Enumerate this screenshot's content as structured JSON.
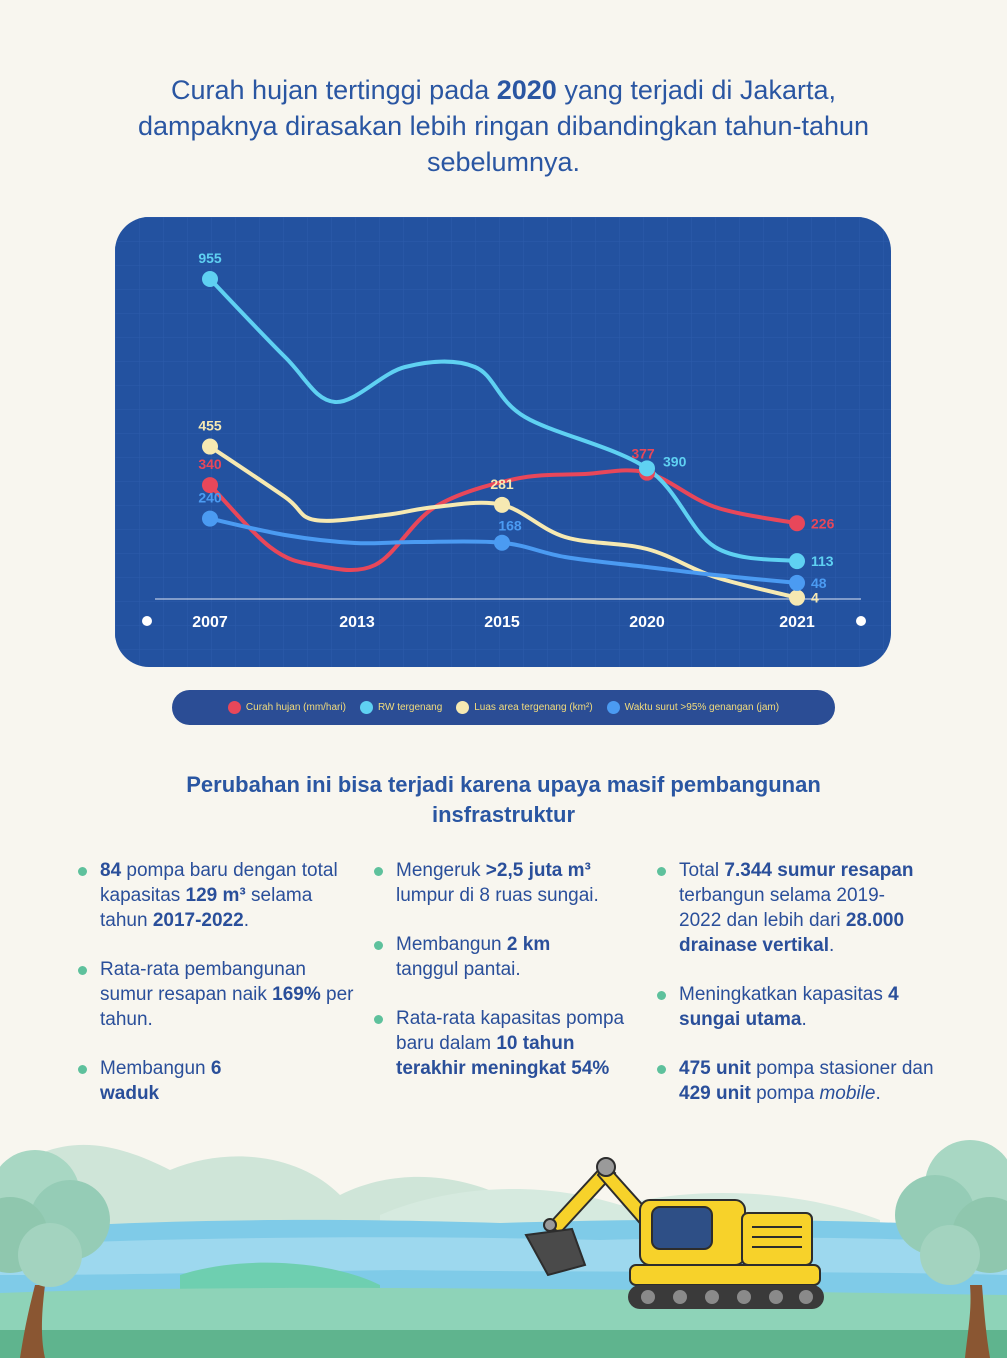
{
  "title": {
    "part1": "Curah hujan tertinggi pada ",
    "year": "2020",
    "part2": " yang terjadi di Jakarta, dampaknya dirasakan lebih ringan dibandingkan tahun-tahun sebelumnya."
  },
  "chart_data": {
    "type": "line",
    "categories": [
      "2007",
      "2013",
      "2015",
      "2020",
      "2021"
    ],
    "series": [
      {
        "name": "Curah hujan (mm/hari)",
        "color": "#e8475a",
        "values": [
          340,
          null,
          null,
          377,
          226
        ],
        "labels": [
          "340",
          "",
          "",
          "377",
          "226"
        ]
      },
      {
        "name": "RW tergenang",
        "color": "#5fd1f2",
        "values": [
          955,
          null,
          null,
          390,
          113
        ],
        "labels": [
          "955",
          "",
          "",
          "390",
          "113"
        ]
      },
      {
        "name": "Luas area tergenang (km²)",
        "color": "#f6e9b2",
        "values": [
          455,
          null,
          281,
          null,
          4
        ],
        "labels": [
          "455",
          "",
          "281",
          "",
          "4"
        ]
      },
      {
        "name": "Waktu surut >95% genangan (jam)",
        "color": "#4b9bf2",
        "values": [
          240,
          null,
          168,
          null,
          48
        ],
        "labels": [
          "240",
          "",
          "168",
          "",
          "48"
        ]
      }
    ]
  },
  "subtitle": "Perubahan ini bisa terjadi karena upaya masif pembangunan insfrastruktur",
  "facts": {
    "c1_1": {
      "a": "84",
      "b": " pompa baru dengan total kapasitas ",
      "c": "129 m³",
      "d": " selama tahun ",
      "e": "2017-2022",
      "f": "."
    },
    "c1_2": {
      "a": "Rata-rata pembangunan sumur resapan naik ",
      "b": "169%",
      "c": " per tahun."
    },
    "c1_3": {
      "a": "Membangun ",
      "b": "6 waduk"
    },
    "c2_1": {
      "a": "Mengeruk ",
      "b": ">2,5 juta m³",
      "c": " lumpur di 8 ruas sungai."
    },
    "c2_2": {
      "a": "Membangun ",
      "b": "2 km",
      "c": " tanggul pantai."
    },
    "c2_3": {
      "a": "Rata-rata kapasitas pompa baru dalam ",
      "b": "10 tahun terakhir meningkat 54%"
    },
    "c3_1": {
      "a": "Total ",
      "b": "7.344 sumur resapan",
      "c": " terbangun selama 2019-2022 dan lebih dari ",
      "d": "28.000 drainase vertikal",
      "e": "."
    },
    "c3_2": {
      "a": "Meningkatkan kapasitas ",
      "b": "4 sungai utama",
      "c": "."
    },
    "c3_3": {
      "a": "475 unit",
      "b": " pompa stasioner dan ",
      "c": "429 unit",
      "d": " pompa ",
      "e": "mobile",
      "f": "."
    }
  }
}
